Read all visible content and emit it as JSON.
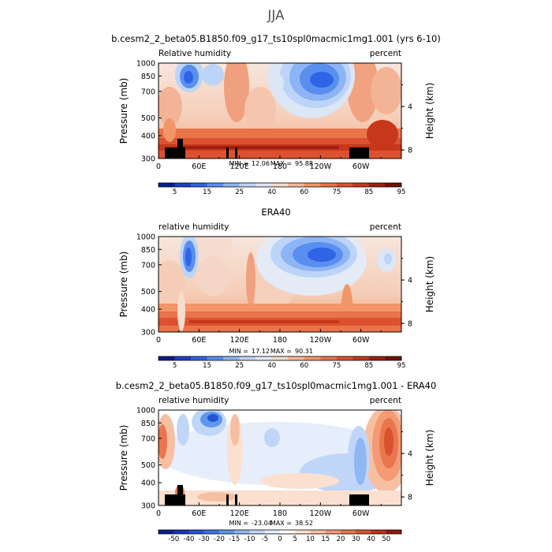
{
  "figure_title": "JJA",
  "chart_data": [
    {
      "type": "contour",
      "title": "b.cesm2_2_beta05.B1850.f09_g17_ts10spl0macmic1mg1.001 (yrs 6-10)",
      "field_label": "Relative humidity",
      "units_label": "percent",
      "xlabel": "",
      "ylabel": "Pressure (mb)",
      "ylabel_right": "Height (km)",
      "x_ticks": [
        "0",
        "60E",
        "120E",
        "180",
        "120W",
        "60W"
      ],
      "x_tick_values": [
        0,
        60,
        120,
        180,
        240,
        300
      ],
      "xlim": [
        0,
        360
      ],
      "y_ticks": [
        "300",
        "400",
        "500",
        "700",
        "850",
        "1000"
      ],
      "y_tick_values": [
        300,
        400,
        500,
        700,
        850,
        1000
      ],
      "ylim": [
        1000,
        300
      ],
      "height_ticks": [
        "8",
        "4"
      ],
      "height_tick_values": [
        8,
        4
      ],
      "min_label": "MIN =",
      "min_value": "12.06",
      "max_label": "MAX =",
      "max_value": "95.88",
      "colorbar_levels": [
        "5",
        "15",
        "25",
        "40",
        "60",
        "75",
        "85",
        "95"
      ],
      "topography": true
    },
    {
      "type": "contour",
      "title": "ERA40",
      "field_label": "relative humidity",
      "units_label": "percent",
      "xlabel": "",
      "ylabel": "Pressure (mb)",
      "ylabel_right": "Height (km)",
      "x_ticks": [
        "0",
        "60E",
        "120E",
        "180",
        "120W",
        "60W"
      ],
      "x_tick_values": [
        0,
        60,
        120,
        180,
        240,
        300
      ],
      "xlim": [
        0,
        360
      ],
      "y_ticks": [
        "300",
        "400",
        "500",
        "700",
        "850",
        "1000"
      ],
      "y_tick_values": [
        300,
        400,
        500,
        700,
        850,
        1000
      ],
      "ylim": [
        1000,
        300
      ],
      "height_ticks": [
        "8",
        "4"
      ],
      "height_tick_values": [
        8,
        4
      ],
      "min_label": "MIN =",
      "min_value": "17.12",
      "max_label": "MAX =",
      "max_value": "90.31",
      "colorbar_levels": [
        "5",
        "15",
        "25",
        "40",
        "60",
        "75",
        "85",
        "95"
      ],
      "topography": false
    },
    {
      "type": "contour",
      "title": "b.cesm2_2_beta05.B1850.f09_g17_ts10spl0macmic1mg1.001 - ERA40",
      "field_label": "relative humidity",
      "units_label": "percent",
      "xlabel": "",
      "ylabel": "Pressure (mb)",
      "ylabel_right": "Height (km)",
      "x_ticks": [
        "0",
        "60E",
        "120E",
        "180",
        "120W",
        "60W"
      ],
      "x_tick_values": [
        0,
        60,
        120,
        180,
        240,
        300
      ],
      "xlim": [
        0,
        360
      ],
      "y_ticks": [
        "300",
        "400",
        "500",
        "700",
        "850",
        "1000"
      ],
      "y_tick_values": [
        300,
        400,
        500,
        700,
        850,
        1000
      ],
      "ylim": [
        1000,
        300
      ],
      "height_ticks": [
        "8",
        "4"
      ],
      "height_tick_values": [
        8,
        4
      ],
      "min_label": "MIN =",
      "min_value": "-23.04",
      "max_label": "MAX =",
      "max_value": "38.52",
      "colorbar_levels": [
        "-50",
        "-40",
        "-30",
        "-20",
        "-15",
        "-10",
        "-5",
        "0",
        "5",
        "10",
        "15",
        "20",
        "30",
        "40",
        "50"
      ],
      "topography": true
    }
  ],
  "colors": {
    "abs_scale": [
      "#0b1f8a",
      "#1f3fc9",
      "#2f64e6",
      "#5a8ff0",
      "#8db4f5",
      "#bcd4f7",
      "#dfe9f6",
      "#f5dccd",
      "#f6b899",
      "#f29669",
      "#e97449",
      "#dc5230",
      "#c6371b",
      "#9e1f0d",
      "#6e1205"
    ],
    "diff_scale": [
      "#0b1f8a",
      "#1a35b8",
      "#2455d4",
      "#3b75e6",
      "#5f97ef",
      "#8fb7f4",
      "#bfd6f8",
      "#e6eefb",
      "#ffffff",
      "#fbe0d0",
      "#f7bfa2",
      "#f29b74",
      "#e9764d",
      "#d9522f",
      "#bb3216",
      "#8e1a08"
    ],
    "topography": "#000000"
  }
}
